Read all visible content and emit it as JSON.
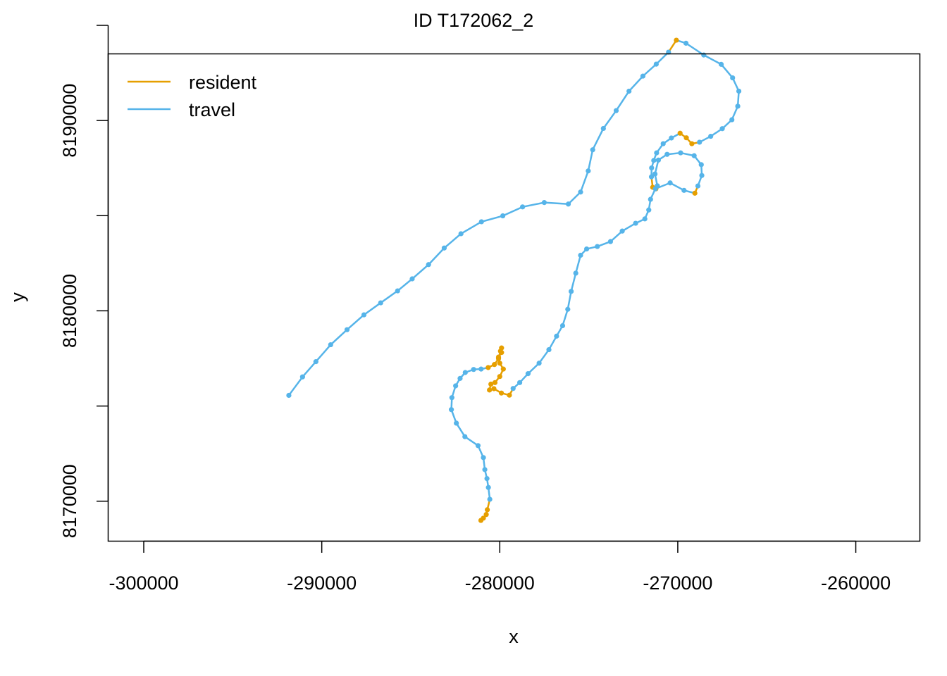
{
  "chart_data": {
    "type": "line",
    "title": "ID T172062_2",
    "xlabel": "x",
    "ylabel": "y",
    "xlim": [
      -302000,
      -256400
    ],
    "ylim": [
      8167900,
      8193500
    ],
    "x_ticks": [
      -300000,
      -290000,
      -280000,
      -270000,
      -260000
    ],
    "x_tick_labels": [
      "-300000",
      "-290000",
      "-280000",
      "-270000",
      "-260000"
    ],
    "y_ticks": [
      8170000,
      8175000,
      8180000,
      8185000,
      8190000,
      8195000
    ],
    "y_tick_labels": [
      "8170000",
      "",
      "8180000",
      "",
      "8190000",
      ""
    ],
    "legend_position": "top-left",
    "grid": false,
    "colors": {
      "resident": "#E69F00",
      "travel": "#56B4E9"
    },
    "legend": [
      {
        "label": "resident",
        "color": "#E69F00"
      },
      {
        "label": "travel",
        "color": "#56B4E9"
      }
    ],
    "track": [
      {
        "x": -291850,
        "y": 8175560,
        "state": "travel"
      },
      {
        "x": -291080,
        "y": 8176530,
        "state": "travel"
      },
      {
        "x": -290330,
        "y": 8177330,
        "state": "travel"
      },
      {
        "x": -289500,
        "y": 8178220,
        "state": "travel"
      },
      {
        "x": -288580,
        "y": 8179010,
        "state": "travel"
      },
      {
        "x": -287630,
        "y": 8179790,
        "state": "travel"
      },
      {
        "x": -286690,
        "y": 8180420,
        "state": "travel"
      },
      {
        "x": -285740,
        "y": 8181050,
        "state": "travel"
      },
      {
        "x": -284920,
        "y": 8181680,
        "state": "travel"
      },
      {
        "x": -284000,
        "y": 8182430,
        "state": "travel"
      },
      {
        "x": -283120,
        "y": 8183300,
        "state": "travel"
      },
      {
        "x": -282180,
        "y": 8184050,
        "state": "travel"
      },
      {
        "x": -281030,
        "y": 8184680,
        "state": "travel"
      },
      {
        "x": -279830,
        "y": 8184990,
        "state": "travel"
      },
      {
        "x": -278720,
        "y": 8185460,
        "state": "travel"
      },
      {
        "x": -277500,
        "y": 8185690,
        "state": "travel"
      },
      {
        "x": -276150,
        "y": 8185610,
        "state": "travel"
      },
      {
        "x": -275460,
        "y": 8186240,
        "state": "travel"
      },
      {
        "x": -275030,
        "y": 8187350,
        "state": "travel"
      },
      {
        "x": -274780,
        "y": 8188460,
        "state": "travel"
      },
      {
        "x": -274180,
        "y": 8189580,
        "state": "travel"
      },
      {
        "x": -273460,
        "y": 8190520,
        "state": "travel"
      },
      {
        "x": -272740,
        "y": 8191540,
        "state": "travel"
      },
      {
        "x": -271960,
        "y": 8192330,
        "state": "travel"
      },
      {
        "x": -271210,
        "y": 8192960,
        "state": "travel"
      },
      {
        "x": -270520,
        "y": 8193590,
        "state": "travel"
      },
      {
        "x": -270080,
        "y": 8194220,
        "state": "resident"
      },
      {
        "x": -269540,
        "y": 8194060,
        "state": "travel"
      },
      {
        "x": -268540,
        "y": 8193440,
        "state": "travel"
      },
      {
        "x": -267560,
        "y": 8192950,
        "state": "travel"
      },
      {
        "x": -266920,
        "y": 8192240,
        "state": "travel"
      },
      {
        "x": -266570,
        "y": 8191540,
        "state": "travel"
      },
      {
        "x": -266630,
        "y": 8190750,
        "state": "travel"
      },
      {
        "x": -266960,
        "y": 8190040,
        "state": "travel"
      },
      {
        "x": -267500,
        "y": 8189570,
        "state": "travel"
      },
      {
        "x": -268150,
        "y": 8189170,
        "state": "travel"
      },
      {
        "x": -268780,
        "y": 8188860,
        "state": "travel"
      },
      {
        "x": -269210,
        "y": 8188780,
        "state": "resident"
      },
      {
        "x": -269520,
        "y": 8189090,
        "state": "resident"
      },
      {
        "x": -269870,
        "y": 8189330,
        "state": "resident"
      },
      {
        "x": -270360,
        "y": 8189080,
        "state": "travel"
      },
      {
        "x": -270820,
        "y": 8188780,
        "state": "travel"
      },
      {
        "x": -271190,
        "y": 8188300,
        "state": "travel"
      },
      {
        "x": -271350,
        "y": 8187900,
        "state": "travel"
      },
      {
        "x": -271470,
        "y": 8187510,
        "state": "travel"
      },
      {
        "x": -271480,
        "y": 8187040,
        "state": "travel"
      },
      {
        "x": -271410,
        "y": 8186490,
        "state": "resident"
      },
      {
        "x": -271230,
        "y": 8186410,
        "state": "resident"
      },
      {
        "x": -271150,
        "y": 8186570,
        "state": "travel"
      },
      {
        "x": -271280,
        "y": 8187190,
        "state": "travel"
      },
      {
        "x": -271090,
        "y": 8187920,
        "state": "travel"
      },
      {
        "x": -270600,
        "y": 8188220,
        "state": "travel"
      },
      {
        "x": -269840,
        "y": 8188300,
        "state": "travel"
      },
      {
        "x": -269080,
        "y": 8188150,
        "state": "travel"
      },
      {
        "x": -268680,
        "y": 8187680,
        "state": "travel"
      },
      {
        "x": -268650,
        "y": 8187110,
        "state": "travel"
      },
      {
        "x": -268870,
        "y": 8186560,
        "state": "travel"
      },
      {
        "x": -269040,
        "y": 8186180,
        "state": "resident"
      },
      {
        "x": -269650,
        "y": 8186330,
        "state": "travel"
      },
      {
        "x": -270430,
        "y": 8186720,
        "state": "travel"
      },
      {
        "x": -271260,
        "y": 8186410,
        "state": "travel"
      },
      {
        "x": -271530,
        "y": 8185860,
        "state": "travel"
      },
      {
        "x": -271630,
        "y": 8185300,
        "state": "travel"
      },
      {
        "x": -271850,
        "y": 8184830,
        "state": "travel"
      },
      {
        "x": -272370,
        "y": 8184600,
        "state": "travel"
      },
      {
        "x": -273120,
        "y": 8184190,
        "state": "travel"
      },
      {
        "x": -273780,
        "y": 8183640,
        "state": "travel"
      },
      {
        "x": -274520,
        "y": 8183380,
        "state": "travel"
      },
      {
        "x": -275120,
        "y": 8183250,
        "state": "travel"
      },
      {
        "x": -275460,
        "y": 8182920,
        "state": "travel"
      },
      {
        "x": -275730,
        "y": 8181980,
        "state": "travel"
      },
      {
        "x": -275990,
        "y": 8181020,
        "state": "travel"
      },
      {
        "x": -276180,
        "y": 8180080,
        "state": "travel"
      },
      {
        "x": -276470,
        "y": 8179220,
        "state": "travel"
      },
      {
        "x": -276810,
        "y": 8178670,
        "state": "travel"
      },
      {
        "x": -277240,
        "y": 8177960,
        "state": "travel"
      },
      {
        "x": -277790,
        "y": 8177250,
        "state": "travel"
      },
      {
        "x": -278410,
        "y": 8176700,
        "state": "travel"
      },
      {
        "x": -278880,
        "y": 8176230,
        "state": "travel"
      },
      {
        "x": -279250,
        "y": 8175920,
        "state": "travel"
      },
      {
        "x": -279460,
        "y": 8175570,
        "state": "resident"
      },
      {
        "x": -279910,
        "y": 8175680,
        "state": "resident"
      },
      {
        "x": -280330,
        "y": 8175910,
        "state": "resident"
      },
      {
        "x": -280580,
        "y": 8175840,
        "state": "resident"
      },
      {
        "x": -280500,
        "y": 8176150,
        "state": "resident"
      },
      {
        "x": -280270,
        "y": 8176230,
        "state": "resident"
      },
      {
        "x": -280000,
        "y": 8176550,
        "state": "resident"
      },
      {
        "x": -279800,
        "y": 8176940,
        "state": "resident"
      },
      {
        "x": -280000,
        "y": 8177250,
        "state": "resident"
      },
      {
        "x": -280070,
        "y": 8177570,
        "state": "resident"
      },
      {
        "x": -279900,
        "y": 8177810,
        "state": "resident"
      },
      {
        "x": -279900,
        "y": 8178050,
        "state": "resident"
      },
      {
        "x": -279960,
        "y": 8177880,
        "state": "resident"
      },
      {
        "x": -280070,
        "y": 8177490,
        "state": "resident"
      },
      {
        "x": -280300,
        "y": 8177180,
        "state": "resident"
      },
      {
        "x": -280650,
        "y": 8177020,
        "state": "resident"
      },
      {
        "x": -281050,
        "y": 8176940,
        "state": "travel"
      },
      {
        "x": -281470,
        "y": 8176920,
        "state": "travel"
      },
      {
        "x": -281940,
        "y": 8176760,
        "state": "travel"
      },
      {
        "x": -282230,
        "y": 8176450,
        "state": "travel"
      },
      {
        "x": -282480,
        "y": 8176060,
        "state": "travel"
      },
      {
        "x": -282690,
        "y": 8175440,
        "state": "travel"
      },
      {
        "x": -282720,
        "y": 8174810,
        "state": "travel"
      },
      {
        "x": -282440,
        "y": 8174100,
        "state": "travel"
      },
      {
        "x": -281960,
        "y": 8173390,
        "state": "travel"
      },
      {
        "x": -281220,
        "y": 8172920,
        "state": "travel"
      },
      {
        "x": -280920,
        "y": 8172290,
        "state": "travel"
      },
      {
        "x": -280840,
        "y": 8171660,
        "state": "travel"
      },
      {
        "x": -280720,
        "y": 8171190,
        "state": "travel"
      },
      {
        "x": -280640,
        "y": 8170720,
        "state": "travel"
      },
      {
        "x": -280560,
        "y": 8170100,
        "state": "travel"
      },
      {
        "x": -280700,
        "y": 8169550,
        "state": "resident"
      },
      {
        "x": -280760,
        "y": 8169300,
        "state": "resident"
      },
      {
        "x": -280920,
        "y": 8169110,
        "state": "resident"
      },
      {
        "x": -281060,
        "y": 8168990,
        "state": "resident"
      }
    ]
  }
}
